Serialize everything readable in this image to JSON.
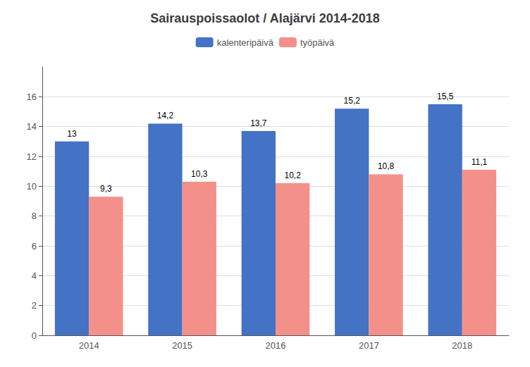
{
  "chart_data": {
    "type": "bar",
    "title": "Sairauspoissaolot / Alajärvi 2014-2018",
    "categories": [
      "2014",
      "2015",
      "2016",
      "2017",
      "2018"
    ],
    "series": [
      {
        "name": "kalenteripäivä",
        "color": "#4472C4",
        "values": [
          13.0,
          14.2,
          13.7,
          15.2,
          15.5
        ],
        "value_labels": [
          "13",
          "14,2",
          "13,7",
          "15,2",
          "15,5"
        ]
      },
      {
        "name": "työpäivä",
        "color": "#F4908A",
        "values": [
          9.3,
          10.3,
          10.2,
          10.8,
          11.1
        ],
        "value_labels": [
          "9,3",
          "10,3",
          "10,2",
          "10,8",
          "11,1"
        ]
      }
    ],
    "ylim": [
      0,
      18
    ],
    "yticks": [
      0,
      2,
      4,
      6,
      8,
      10,
      12,
      14,
      16
    ],
    "grid": true,
    "legend": "top",
    "data_labels": true
  }
}
